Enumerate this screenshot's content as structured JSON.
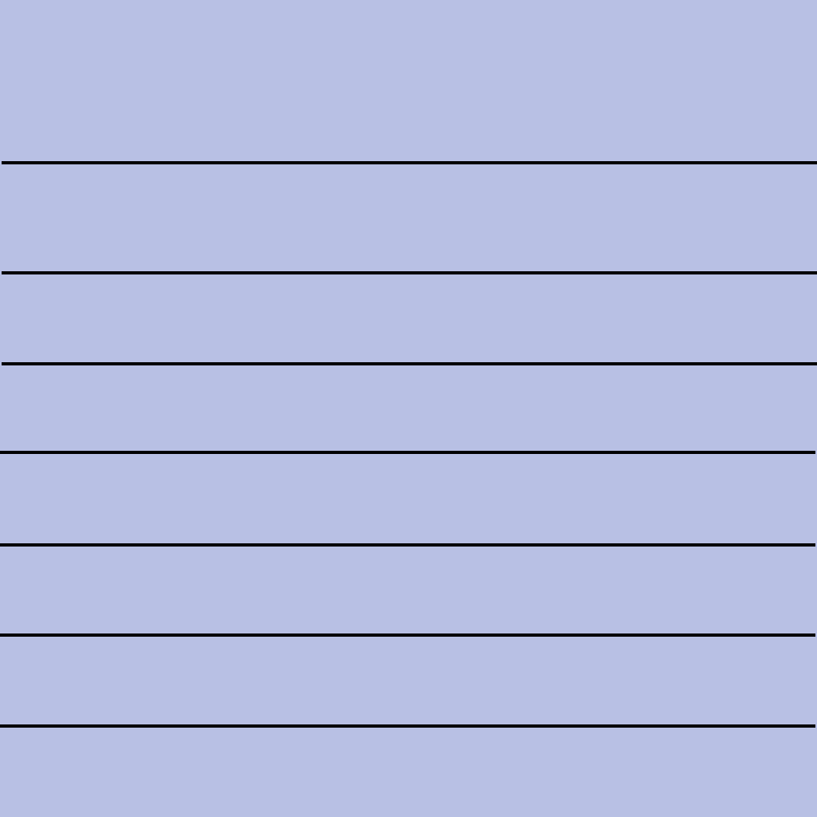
{
  "page": {
    "background_color": "#b8c0e4",
    "line_color": "#000000",
    "line_count": 7
  }
}
